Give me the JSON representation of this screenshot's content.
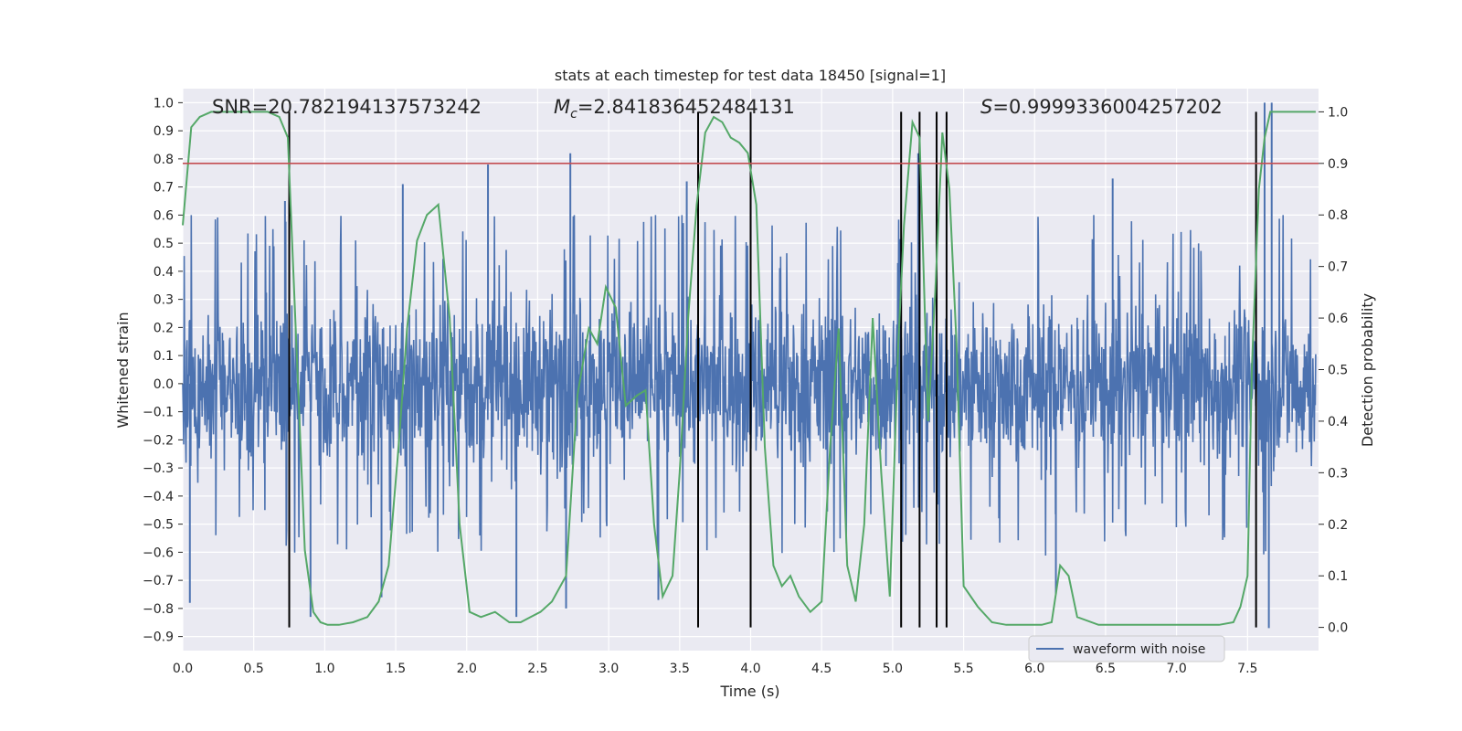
{
  "chart_data": {
    "type": "line",
    "title": "stats at each timestep for test data 18450 [signal=1]",
    "xlabel": "Time (s)",
    "ylabel": "Whitened strain",
    "y2label": "Detection probability",
    "xlim": [
      0.0,
      8.0
    ],
    "ylim": [
      -0.95,
      1.05
    ],
    "y2lim": [
      -0.045,
      1.045
    ],
    "x_ticks": [
      0.0,
      0.5,
      1.0,
      1.5,
      2.0,
      2.5,
      3.0,
      3.5,
      4.0,
      4.5,
      5.0,
      5.5,
      6.0,
      6.5,
      7.0,
      7.5
    ],
    "x_tick_labels": [
      "0.0",
      "0.5",
      "1.0",
      "1.5",
      "2.0",
      "2.5",
      "3.0",
      "3.5",
      "4.0",
      "4.5",
      "5.0",
      "5.5",
      "6.0",
      "6.5",
      "7.0",
      "7.5"
    ],
    "y_ticks": [
      1.0,
      0.9,
      0.8,
      0.7,
      0.6,
      0.5,
      0.4,
      0.3,
      0.2,
      0.1,
      0.0,
      -0.1,
      -0.2,
      -0.3,
      -0.4,
      -0.5,
      -0.6,
      -0.7,
      -0.8,
      -0.9
    ],
    "y_tick_labels": [
      "1.0",
      "0.9",
      "0.8",
      "0.7",
      "0.6",
      "0.5",
      "0.4",
      "0.3",
      "0.2",
      "0.1",
      "0.0",
      "−0.1",
      "−0.2",
      "−0.3",
      "−0.4",
      "−0.5",
      "−0.6",
      "−0.7",
      "−0.8",
      "−0.9"
    ],
    "y2_ticks": [
      1.0,
      0.9,
      0.8,
      0.7,
      0.6,
      0.5,
      0.4,
      0.3,
      0.2,
      0.1,
      0.0
    ],
    "y2_tick_labels": [
      "1.0",
      "0.9",
      "0.8",
      "0.7",
      "0.6",
      "0.5",
      "0.4",
      "0.3",
      "0.2",
      "0.1",
      "0.0"
    ],
    "annotations": {
      "snr": "SNR=20.782194137573242",
      "mc_symbol": "M",
      "mc_subscript": "c",
      "mc_value": "=2.841836452484131",
      "s_symbol": "S",
      "s_value": "=0.9999336004257202"
    },
    "threshold": {
      "value": 0.9,
      "axis": "y2",
      "color": "#c44e52"
    },
    "event_markers_s": [
      0.75,
      3.63,
      4.0,
      5.06,
      5.19,
      5.31,
      5.38,
      7.56
    ],
    "waveform": {
      "name": "waveform with noise",
      "color": "#4c72b0",
      "n_points": 2400,
      "envelope_typical": 0.43,
      "peaks": [
        {
          "x": 0.72,
          "y": 0.65
        },
        {
          "x": 1.55,
          "y": 0.71
        },
        {
          "x": 2.15,
          "y": 0.78
        },
        {
          "x": 2.73,
          "y": 0.82
        },
        {
          "x": 3.55,
          "y": 0.72
        },
        {
          "x": 5.18,
          "y": 0.82
        },
        {
          "x": 6.55,
          "y": 0.73
        },
        {
          "x": 7.62,
          "y": 1.0
        },
        {
          "x": 7.67,
          "y": 1.0
        }
      ],
      "troughs": [
        {
          "x": 0.05,
          "y": -0.78
        },
        {
          "x": 0.9,
          "y": -0.83
        },
        {
          "x": 1.4,
          "y": -0.76
        },
        {
          "x": 2.35,
          "y": -0.83
        },
        {
          "x": 2.7,
          "y": -0.8
        },
        {
          "x": 3.35,
          "y": -0.77
        },
        {
          "x": 6.15,
          "y": -0.75
        },
        {
          "x": 7.65,
          "y": -0.87
        }
      ]
    },
    "probability": {
      "name": "detection probability",
      "color": "#55a868",
      "x": [
        0.0,
        0.06,
        0.12,
        0.2,
        0.3,
        0.4,
        0.5,
        0.6,
        0.68,
        0.74,
        0.8,
        0.86,
        0.92,
        0.97,
        1.02,
        1.1,
        1.2,
        1.3,
        1.38,
        1.45,
        1.52,
        1.58,
        1.65,
        1.72,
        1.8,
        1.88,
        1.95,
        2.02,
        2.1,
        2.2,
        2.3,
        2.38,
        2.45,
        2.52,
        2.6,
        2.7,
        2.78,
        2.86,
        2.92,
        2.98,
        3.05,
        3.12,
        3.2,
        3.26,
        3.32,
        3.38,
        3.45,
        3.5,
        3.56,
        3.62,
        3.68,
        3.74,
        3.8,
        3.86,
        3.92,
        3.98,
        4.04,
        4.1,
        4.16,
        4.22,
        4.28,
        4.34,
        4.42,
        4.5,
        4.56,
        4.62,
        4.68,
        4.74,
        4.8,
        4.86,
        4.92,
        4.98,
        5.04,
        5.08,
        5.14,
        5.19,
        5.25,
        5.3,
        5.35,
        5.4,
        5.45,
        5.5,
        5.6,
        5.7,
        5.8,
        5.95,
        6.05,
        6.12,
        6.18,
        6.24,
        6.3,
        6.45,
        6.6,
        6.8,
        7.0,
        7.2,
        7.3,
        7.4,
        7.45,
        7.5,
        7.53,
        7.58,
        7.62,
        7.66,
        7.72,
        7.8,
        7.98
      ],
      "y": [
        0.78,
        0.97,
        0.99,
        1.0,
        1.0,
        1.0,
        1.0,
        1.0,
        0.99,
        0.95,
        0.55,
        0.15,
        0.03,
        0.01,
        0.005,
        0.005,
        0.01,
        0.02,
        0.05,
        0.12,
        0.35,
        0.58,
        0.75,
        0.8,
        0.82,
        0.6,
        0.2,
        0.03,
        0.02,
        0.03,
        0.01,
        0.01,
        0.02,
        0.03,
        0.05,
        0.1,
        0.45,
        0.58,
        0.55,
        0.66,
        0.62,
        0.43,
        0.45,
        0.46,
        0.2,
        0.06,
        0.1,
        0.3,
        0.6,
        0.82,
        0.96,
        0.99,
        0.98,
        0.95,
        0.94,
        0.92,
        0.82,
        0.35,
        0.12,
        0.08,
        0.1,
        0.06,
        0.03,
        0.05,
        0.35,
        0.58,
        0.12,
        0.05,
        0.2,
        0.6,
        0.3,
        0.06,
        0.55,
        0.78,
        0.98,
        0.95,
        0.4,
        0.65,
        0.96,
        0.85,
        0.55,
        0.08,
        0.04,
        0.01,
        0.005,
        0.005,
        0.005,
        0.01,
        0.12,
        0.1,
        0.02,
        0.005,
        0.005,
        0.005,
        0.005,
        0.005,
        0.005,
        0.01,
        0.04,
        0.1,
        0.5,
        0.85,
        0.95,
        1.0,
        1.0,
        1.0,
        1.0
      ]
    }
  }
}
